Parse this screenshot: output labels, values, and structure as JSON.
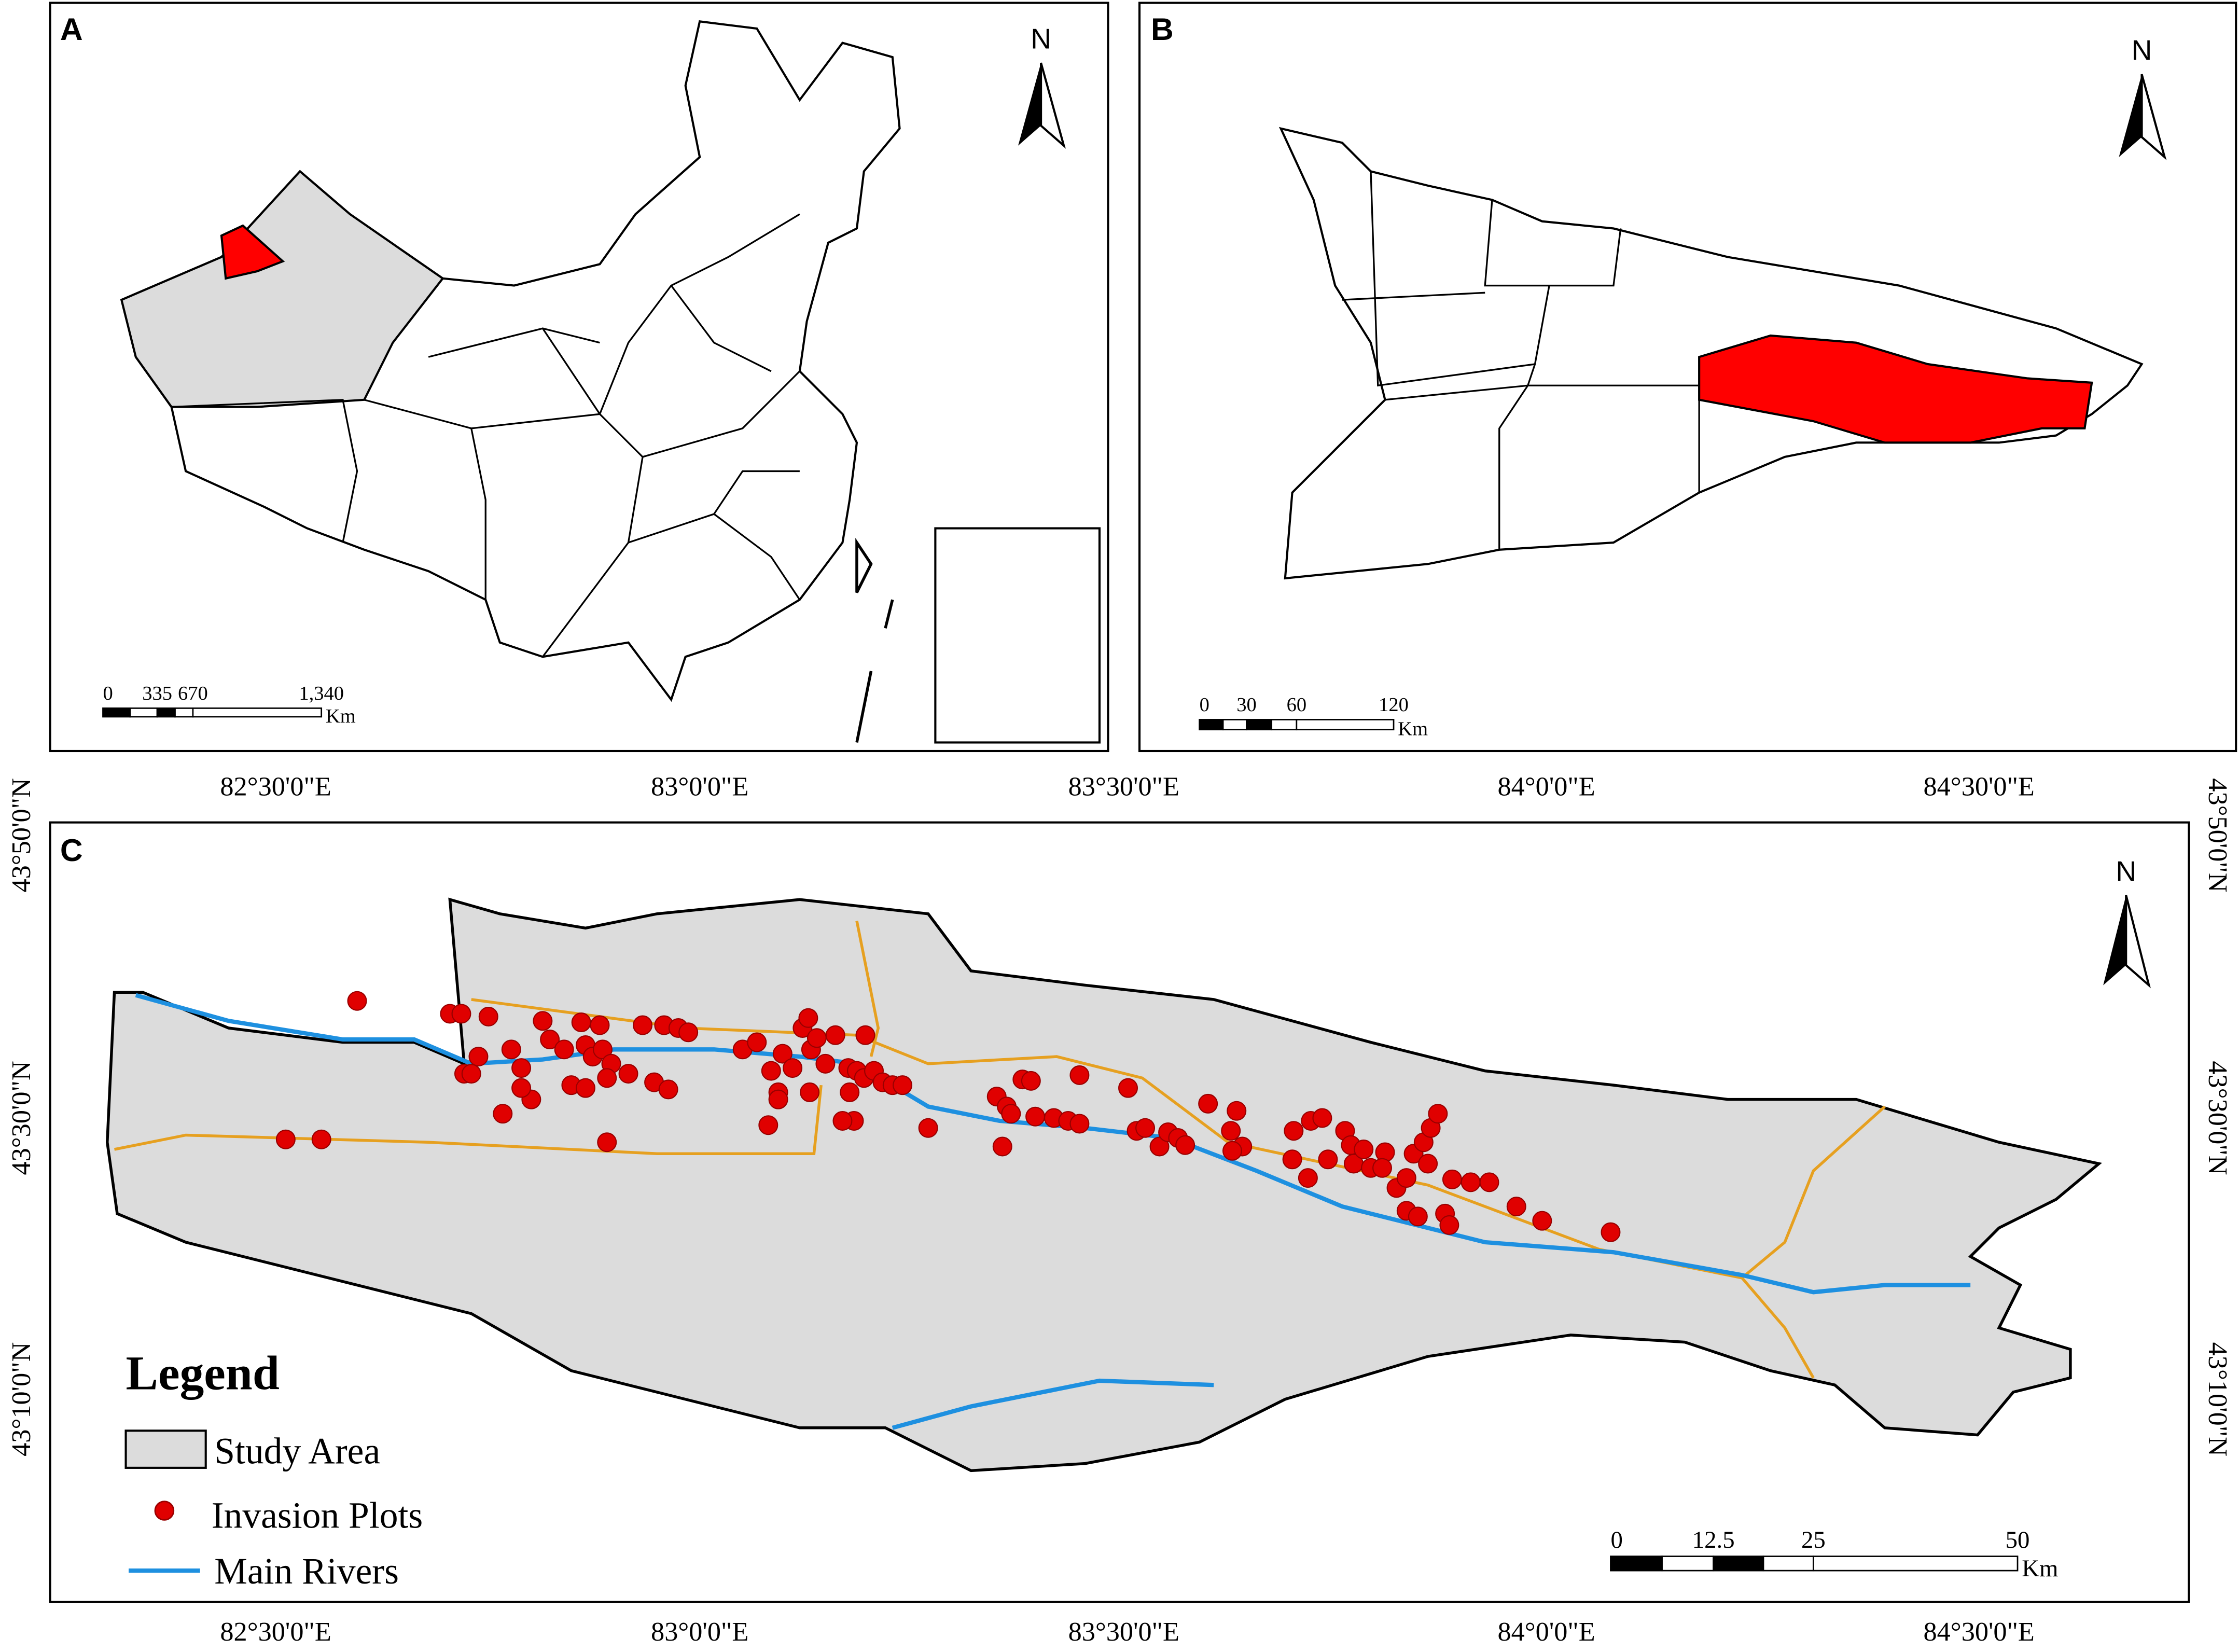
{
  "panels": [
    {
      "label": "A",
      "north": "N",
      "scale_bar": {
        "ticks": [
          "0",
          "335",
          "670",
          "1,340"
        ],
        "unit": "Km"
      }
    },
    {
      "label": "B",
      "north": "N",
      "scale_bar": {
        "ticks": [
          "0",
          "30",
          "60",
          "120"
        ],
        "unit": "Km"
      }
    },
    {
      "label": "C",
      "north": "N",
      "scale_bar": {
        "ticks": [
          "0",
          "12.5",
          "25",
          "50"
        ],
        "unit": "Km"
      },
      "x_axis_labels": [
        "82°30'0\"E",
        "83°0'0\"E",
        "83°30'0\"E",
        "84°0'0\"E",
        "84°30'0\"E"
      ],
      "y_axis_labels": [
        "43°50'0\"N",
        "43°30'0\"N",
        "43°10'0\"N"
      ],
      "legend": {
        "title": "Legend",
        "items": [
          "Study Area",
          "Invasion Plots",
          "Main Rivers"
        ]
      }
    }
  ]
}
